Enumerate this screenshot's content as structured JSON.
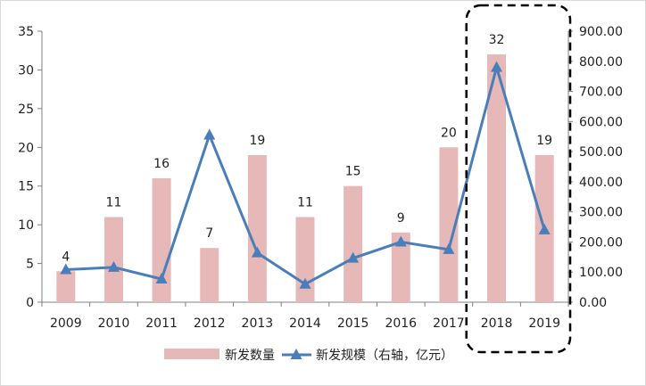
{
  "chart_data": {
    "type": "bar",
    "categories": [
      "2009",
      "2010",
      "2011",
      "2012",
      "2013",
      "2014",
      "2015",
      "2016",
      "2017",
      "2018",
      "2019"
    ],
    "series": [
      {
        "name": "新发数量",
        "type": "bar",
        "axis": "left",
        "values": [
          4,
          11,
          16,
          7,
          19,
          11,
          15,
          9,
          20,
          32,
          19
        ],
        "color": "#e6b8b7"
      },
      {
        "name": "新发规模（右轴，亿元）",
        "type": "line",
        "axis": "right",
        "marker": "triangle",
        "values": [
          108,
          116,
          77,
          555,
          164,
          60,
          146,
          200,
          175,
          780,
          240
        ],
        "color": "#4a7ebb"
      }
    ],
    "data_labels": [
      "4",
      "11",
      "16",
      "7",
      "19",
      "11",
      "15",
      "9",
      "20",
      "32",
      "19"
    ],
    "y_left": {
      "ylim": [
        0,
        35
      ],
      "ticks": [
        "0",
        "5",
        "10",
        "15",
        "20",
        "25",
        "30",
        "35"
      ]
    },
    "y_right": {
      "ylim": [
        0,
        900
      ],
      "ticks": [
        "0.00",
        "100.00",
        "200.00",
        "300.00",
        "400.00",
        "500.00",
        "600.00",
        "700.00",
        "800.00",
        "900.00"
      ]
    },
    "grid": false,
    "legend_position": "bottom",
    "highlight": {
      "categories": [
        "2018",
        "2019"
      ],
      "style": "dashed rounded box"
    }
  }
}
